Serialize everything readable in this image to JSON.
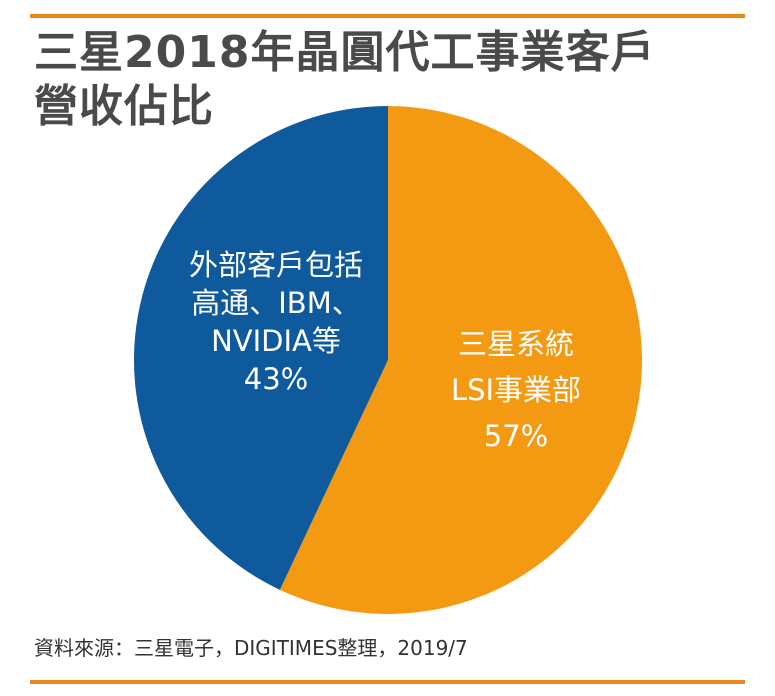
{
  "colors": {
    "accent_rule": "#e8891e",
    "title_text": "#4a4a4a",
    "label_text": "#ffffff"
  },
  "chart_data": {
    "type": "pie",
    "title": [
      "三星2018年晶圓代工事業客戶",
      "營收佔比"
    ],
    "slices": [
      {
        "label_lines": [
          "三星系統",
          "LSI事業部",
          "57%"
        ],
        "value": 57,
        "color": "#f49a12"
      },
      {
        "label_lines": [
          "外部客戶包括",
          "高通、IBM、",
          "NVIDIA等",
          "43%"
        ],
        "value": 43,
        "color": "#0e5a9c"
      }
    ],
    "start": "12 o'clock",
    "direction": "clockwise"
  },
  "source": "資料來源：三星電子，DIGITIMES整理，2019/7"
}
